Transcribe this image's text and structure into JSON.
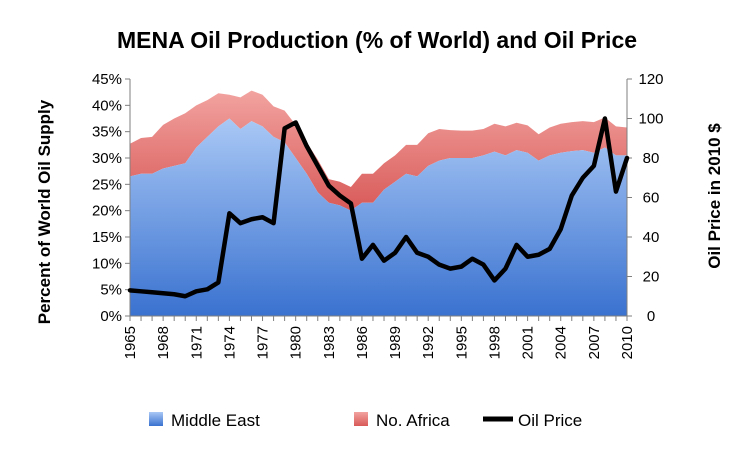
{
  "chart_data": {
    "type": "area",
    "title": "MENA Oil Production (% of World) and Oil Price",
    "ylabel": "Percent of World Oil Supply",
    "y2label": "Oil Price in 2010 $",
    "xlim": [
      1965,
      2010
    ],
    "ylim": [
      0,
      0.45
    ],
    "y2lim": [
      0,
      120
    ],
    "y_ticks": [
      "0%",
      "5%",
      "10%",
      "15%",
      "20%",
      "25%",
      "30%",
      "35%",
      "40%",
      "45%"
    ],
    "y_tick_values": [
      0,
      0.05,
      0.1,
      0.15,
      0.2,
      0.25,
      0.3,
      0.35,
      0.4,
      0.45
    ],
    "y2_ticks": [
      "0",
      "20",
      "40",
      "60",
      "80",
      "100",
      "120"
    ],
    "y2_tick_values": [
      0,
      20,
      40,
      60,
      80,
      100,
      120
    ],
    "x_ticks": [
      "1965",
      "1968",
      "1971",
      "1974",
      "1977",
      "1980",
      "1983",
      "1986",
      "1989",
      "1992",
      "1995",
      "1998",
      "2001",
      "2004",
      "2007",
      "2010"
    ],
    "x_tick_values": [
      1965,
      1968,
      1971,
      1974,
      1977,
      1980,
      1983,
      1986,
      1989,
      1992,
      1995,
      1998,
      2001,
      2004,
      2007,
      2010
    ],
    "x": [
      1965,
      1966,
      1967,
      1968,
      1969,
      1970,
      1971,
      1972,
      1973,
      1974,
      1975,
      1976,
      1977,
      1978,
      1979,
      1980,
      1981,
      1982,
      1983,
      1984,
      1985,
      1986,
      1987,
      1988,
      1989,
      1990,
      1991,
      1992,
      1993,
      1994,
      1995,
      1996,
      1997,
      1998,
      1999,
      2000,
      2001,
      2002,
      2003,
      2004,
      2005,
      2006,
      2007,
      2008,
      2009,
      2010
    ],
    "legend_position": "bottom",
    "grid": false,
    "series": [
      {
        "name": "Middle East",
        "kind": "stacked-area",
        "axis": "left",
        "color": "#5b8ee0",
        "values": [
          0.265,
          0.27,
          0.27,
          0.28,
          0.285,
          0.29,
          0.32,
          0.34,
          0.36,
          0.375,
          0.355,
          0.37,
          0.36,
          0.34,
          0.33,
          0.3,
          0.27,
          0.235,
          0.215,
          0.21,
          0.2,
          0.215,
          0.215,
          0.24,
          0.255,
          0.27,
          0.265,
          0.285,
          0.295,
          0.3,
          0.3,
          0.3,
          0.305,
          0.312,
          0.305,
          0.315,
          0.31,
          0.295,
          0.305,
          0.31,
          0.313,
          0.315,
          0.31,
          0.32,
          0.305,
          0.305
        ]
      },
      {
        "name": "No. Africa",
        "kind": "stacked-area",
        "axis": "left",
        "color": "#e07070",
        "values": [
          0.062,
          0.068,
          0.07,
          0.083,
          0.09,
          0.095,
          0.08,
          0.07,
          0.063,
          0.045,
          0.06,
          0.058,
          0.06,
          0.058,
          0.06,
          0.063,
          0.06,
          0.062,
          0.045,
          0.045,
          0.045,
          0.055,
          0.055,
          0.05,
          0.05,
          0.055,
          0.06,
          0.062,
          0.06,
          0.053,
          0.052,
          0.052,
          0.05,
          0.053,
          0.055,
          0.052,
          0.052,
          0.05,
          0.053,
          0.055,
          0.055,
          0.055,
          0.058,
          0.057,
          0.055,
          0.053
        ]
      },
      {
        "name": "Oil Price",
        "kind": "line",
        "axis": "right",
        "color": "#000000",
        "values": [
          13,
          12.5,
          12,
          11.5,
          11,
          10,
          12.5,
          13.5,
          17,
          52,
          47,
          49,
          50,
          47,
          95,
          98,
          86,
          76,
          66,
          61,
          57,
          29,
          36,
          28,
          32,
          40,
          32,
          30,
          26,
          24,
          25,
          29,
          26,
          18,
          24,
          36,
          30,
          31,
          34,
          44,
          61,
          70,
          76,
          100,
          63,
          80
        ]
      }
    ]
  }
}
